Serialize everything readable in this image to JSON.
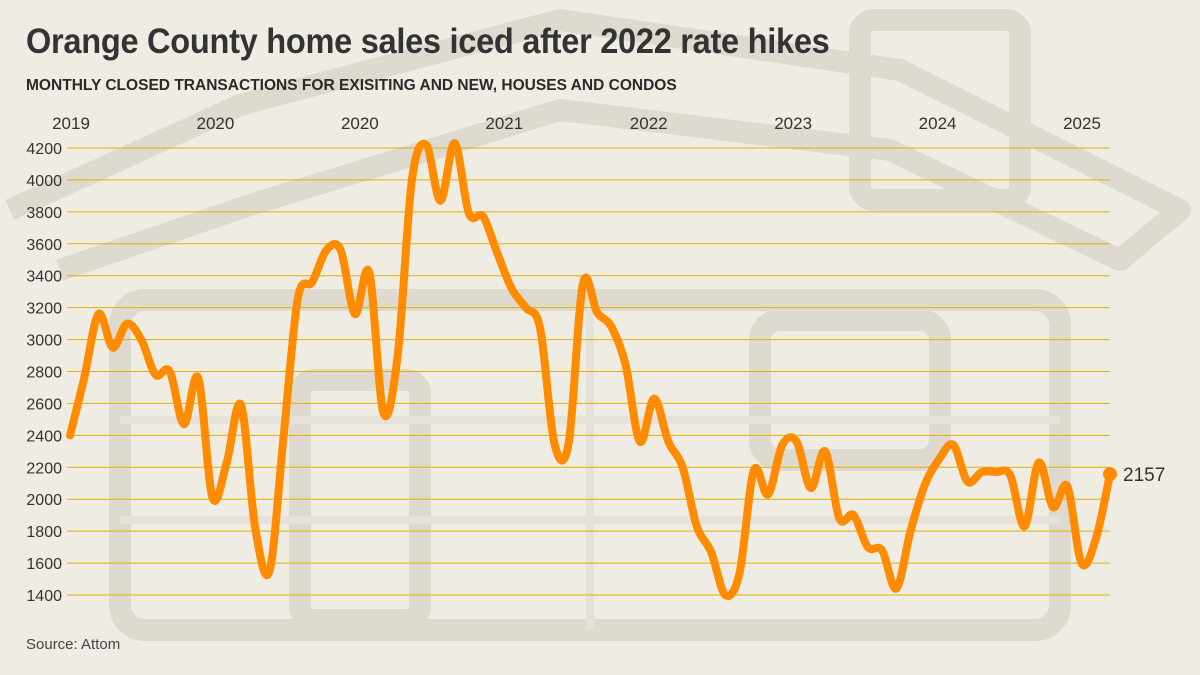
{
  "header": {
    "title": "Orange County home sales iced after 2022 rate hikes",
    "subtitle": "MONTHLY CLOSED TRANSACTIONS FOR EXISITING AND NEW, HOUSES AND CONDOS"
  },
  "footer": {
    "source": "Source: Attom"
  },
  "colors": {
    "line": "#ff8c00",
    "grid": "#e0b000",
    "text": "#333333",
    "background": "#efece4"
  },
  "chart_data": {
    "type": "line",
    "title": "Orange County home sales iced after 2022 rate hikes",
    "subtitle": "MONTHLY CLOSED TRANSACTIONS FOR EXISITING AND NEW, HOUSES AND CONDOS",
    "xlabel": "",
    "ylabel": "",
    "ylim": [
      1400,
      4200
    ],
    "yticks": [
      1400,
      1600,
      1800,
      2000,
      2200,
      2400,
      2600,
      2800,
      3000,
      3200,
      3400,
      3600,
      3800,
      4000,
      4200
    ],
    "xtick_labels": [
      "2019",
      "2020",
      "2020",
      "2021",
      "2022",
      "2023",
      "2024",
      "2025"
    ],
    "grid": true,
    "legend": "none",
    "end_label": "2157",
    "series": [
      {
        "values": [
          2400,
          2760,
          3160,
          2950,
          3100,
          3000,
          2780,
          2800,
          2470,
          2760,
          2010,
          2230,
          2590,
          1820,
          1550,
          2400,
          3260,
          3360,
          3560,
          3560,
          3160,
          3420,
          2540,
          2900,
          4000,
          4220,
          3870,
          4230,
          3790,
          3770,
          3540,
          3320,
          3200,
          3070,
          2350,
          2350,
          3350,
          3170,
          3080,
          2840,
          2360,
          2630,
          2360,
          2200,
          1830,
          1670,
          1400,
          1540,
          2180,
          2030,
          2340,
          2360,
          2070,
          2300,
          1880,
          1900,
          1700,
          1680,
          1440,
          1800,
          2090,
          2250,
          2340,
          2110,
          2170,
          2170,
          2150,
          1830,
          2230,
          1950,
          2080,
          1600,
          1750,
          2157
        ]
      }
    ]
  }
}
